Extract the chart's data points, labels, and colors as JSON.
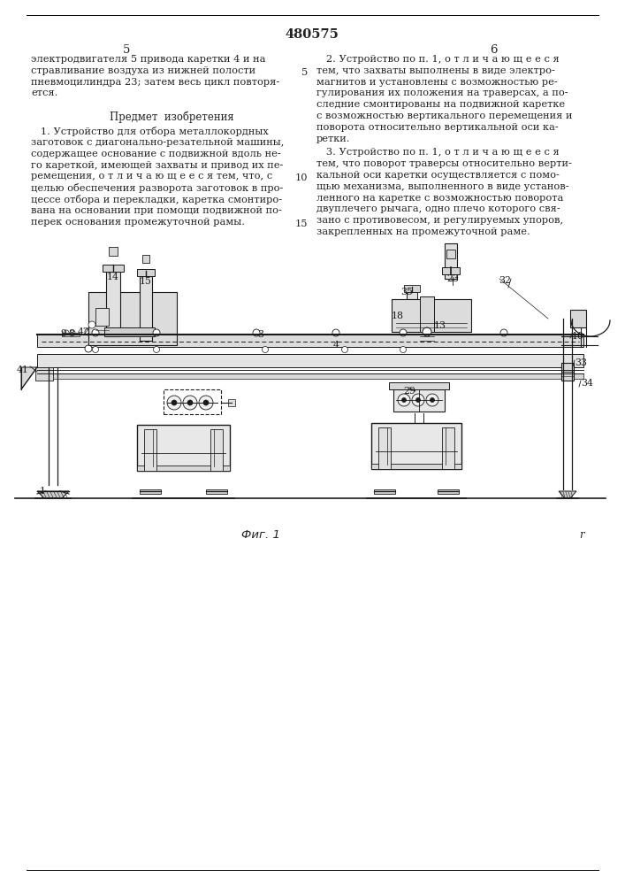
{
  "patent_number": "480575",
  "page_left": "5",
  "page_right": "6",
  "bg_color": "#ffffff",
  "text_color": "#222222",
  "line1_left": "электродвигателя 5 привода каретки 4 и на",
  "line2_left": "стравливание воздуха из нижней полости",
  "line3_left": "пневмоцилиндра 23; затем весь цикл повторя-",
  "line4_left": "ется.",
  "predmet": "Предмет  изобретения",
  "para1_lines": [
    "   1. Устройство для отбора металлокордных",
    "заготовок с диагонально-резательной машины,",
    "содержащее основание с подвижной вдоль не-",
    "го кареткой, имеющей захваты и привод их пе-",
    "ремещения, о т л и ч а ю щ е е с я тем, что, с",
    "целью обеспечения разворота заготовок в про-",
    "цессе отбора и перекладки, каретка смонтиро-",
    "вана на основании при помощи подвижной по-",
    "перек основания промежуточной рамы."
  ],
  "para2_lines": [
    "   2. Устройство по п. 1, о т л и ч а ю щ е е с я",
    "тем, что захваты выполнены в виде электро-",
    "магнитов и установлены с возможностью ре-",
    "гулирования их положения на траверсах, а по-",
    "следние смонтированы на подвижной каретке",
    "с возможностью вертикального перемещения и",
    "поворота относительно вертикальной оси ка-",
    "ретки."
  ],
  "para3_lines": [
    "   3. Устройство по п. 1, о т л и ч а ю щ е е с я",
    "тем, что поворот траверсы относительно верти-",
    "кальной оси каретки осуществляется с помо-",
    "щью механизма, выполненного в виде установ-",
    "ленного на каретке с возможностью поворота",
    "двуплечего рычага, одно плечо которого свя-",
    "зано с противовесом, и регулируемых упоров,",
    "закрепленных на промежуточной раме."
  ],
  "fig_caption": "Фиг. 1",
  "fig_r": "r",
  "draw_color": "#1a1a1a",
  "draw_fill": "#e8e8e8",
  "draw_fill2": "#f2f2f2"
}
